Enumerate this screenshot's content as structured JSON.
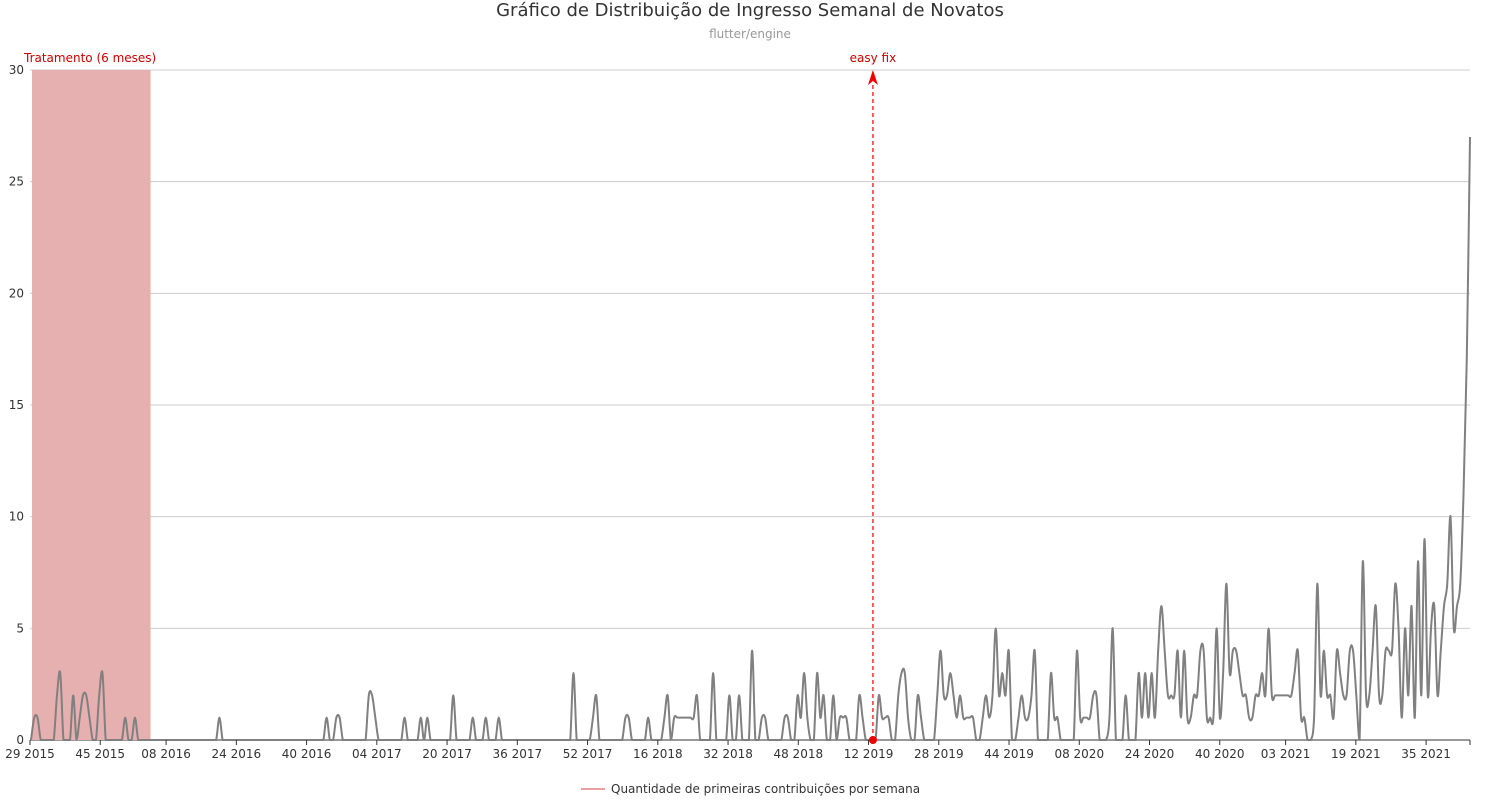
{
  "chart_data": {
    "type": "line",
    "title": "Gráfico de Distribuição de Ingresso Semanal de Novatos",
    "subtitle": "flutter/engine",
    "xlabel": "",
    "ylabel": "",
    "ylim": [
      0,
      30
    ],
    "yticks": [
      0,
      5,
      10,
      15,
      20,
      25,
      30
    ],
    "grid": true,
    "x_tick_labels": [
      "29 2015",
      "45 2015",
      "08 2016",
      "24 2016",
      "40 2016",
      "04 2017",
      "20 2017",
      "36 2017",
      "52 2017",
      "16 2018",
      "32 2018",
      "48 2018",
      "12 2019",
      "28 2019",
      "44 2019",
      "08 2020",
      "24 2020",
      "40 2020",
      "03 2021",
      "19 2021",
      "35 2021"
    ],
    "x_start": "29 2015",
    "x_end": "45 2021",
    "legend_position": "bottom-center",
    "series": [
      {
        "name": "Quantidade de primeiras contribuições por semana",
        "color": "#808080",
        "legend_color": "#e8a0a0",
        "values": [
          0,
          1,
          1,
          0,
          0,
          0,
          0,
          0,
          2,
          3,
          0,
          0,
          0,
          2,
          0,
          1,
          2,
          2,
          1,
          0,
          0,
          2,
          3,
          0,
          0,
          0,
          0,
          0,
          0,
          1,
          0,
          0,
          1,
          0,
          0,
          0,
          0,
          0,
          0,
          0,
          0,
          0,
          0,
          0,
          0,
          0,
          0,
          0,
          0,
          0,
          0,
          0,
          0,
          0,
          0,
          0,
          0,
          0,
          1,
          0,
          0,
          0,
          0,
          0,
          0,
          0,
          0,
          0,
          0,
          0,
          0,
          0,
          0,
          0,
          0,
          0,
          0,
          0,
          0,
          0,
          0,
          0,
          0,
          0,
          0,
          0,
          0,
          0,
          0,
          0,
          0,
          1,
          0,
          0,
          1,
          1,
          0,
          0,
          0,
          0,
          0,
          0,
          0,
          0,
          2,
          2,
          1,
          0,
          0,
          0,
          0,
          0,
          0,
          0,
          0,
          1,
          0,
          0,
          0,
          0,
          1,
          0,
          1,
          0,
          0,
          0,
          0,
          0,
          0,
          0,
          2,
          0,
          0,
          0,
          0,
          0,
          1,
          0,
          0,
          0,
          1,
          0,
          0,
          0,
          1,
          0,
          0,
          0,
          0,
          0,
          0,
          0,
          0,
          0,
          0,
          0,
          0,
          0,
          0,
          0,
          0,
          0,
          0,
          0,
          0,
          0,
          0,
          3,
          0,
          0,
          0,
          0,
          0,
          1,
          2,
          0,
          0,
          0,
          0,
          0,
          0,
          0,
          0,
          1,
          1,
          0,
          0,
          0,
          0,
          0,
          1,
          0,
          0,
          0,
          0,
          1,
          2,
          0,
          1,
          1,
          1,
          1,
          1,
          1,
          1,
          2,
          0,
          0,
          0,
          0,
          3,
          0,
          0,
          0,
          0,
          2,
          0,
          0,
          2,
          0,
          0,
          0,
          4,
          0,
          0,
          1,
          1,
          0,
          0,
          0,
          0,
          0,
          1,
          1,
          0,
          0,
          2,
          1,
          3,
          1,
          0,
          0,
          3,
          1,
          2,
          0,
          0,
          2,
          0,
          1,
          1,
          1,
          0,
          0,
          0,
          2,
          1,
          0,
          0,
          0,
          0,
          2,
          1,
          1,
          1,
          0,
          0,
          2,
          3,
          3,
          1,
          0,
          0,
          2,
          1,
          0,
          0,
          0,
          0,
          2,
          4,
          2,
          2,
          3,
          2,
          1,
          2,
          1,
          1,
          1,
          1,
          0,
          0,
          1,
          2,
          1,
          2,
          5,
          2,
          3,
          2,
          4,
          0,
          0,
          1,
          2,
          1,
          1,
          2,
          4,
          0,
          0,
          0,
          0,
          3,
          1,
          1,
          0,
          0,
          0,
          0,
          0,
          4,
          1,
          1,
          1,
          1,
          2,
          2,
          0,
          0,
          0,
          1,
          5,
          0,
          0,
          0,
          2,
          0,
          0,
          0,
          3,
          1,
          3,
          1,
          3,
          1,
          4,
          6,
          4,
          2,
          2,
          2,
          4,
          1,
          4,
          1,
          1,
          2,
          2,
          4,
          4,
          1,
          1,
          1,
          5,
          1,
          3,
          7,
          3,
          4,
          4,
          3,
          2,
          2,
          1,
          1,
          2,
          2,
          3,
          2,
          5,
          2,
          2,
          2,
          2,
          2,
          2,
          2,
          3,
          4,
          1,
          1,
          0,
          0,
          1,
          7,
          2,
          4,
          2,
          2,
          1,
          4,
          3,
          2,
          2,
          4,
          4,
          2,
          0,
          8,
          2,
          2,
          4,
          6,
          2,
          2,
          4,
          4,
          4,
          7,
          5,
          1,
          5,
          2,
          6,
          1,
          8,
          2,
          9,
          2,
          5,
          6,
          2,
          4,
          6,
          7,
          10,
          5,
          6,
          7,
          11,
          17,
          27
        ]
      }
    ],
    "annotations": [
      {
        "type": "band",
        "label": "Tratamento (6 meses)",
        "x_from": "29 2015",
        "x_to": "04 2016",
        "color": "#e6b0b0",
        "label_color": "#cc0000"
      },
      {
        "type": "vline",
        "label": "easy fix",
        "x": "13 2019",
        "color": "#ee0000",
        "label_color": "#cc0000"
      }
    ]
  }
}
